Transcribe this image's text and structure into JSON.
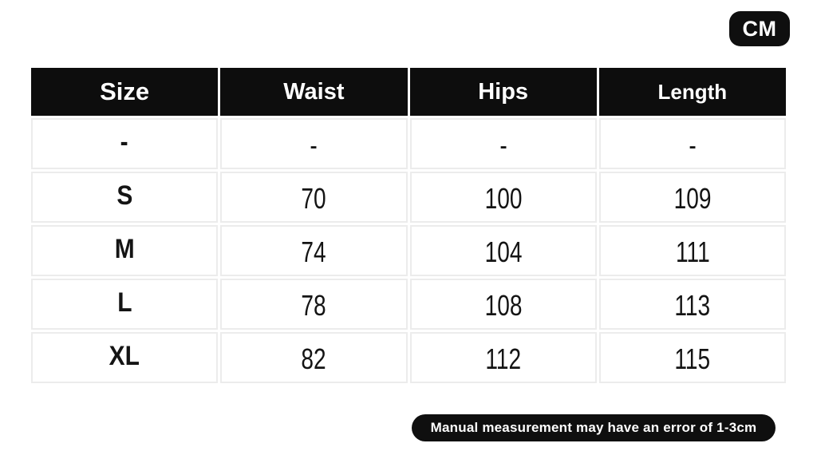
{
  "colors": {
    "badge_black": "#0f0f0f",
    "header_black": "#0d0d0d",
    "cell_border": "#ececec",
    "text": "#141414",
    "background": "#ffffff"
  },
  "unit_badge": {
    "label": "CM"
  },
  "table": {
    "headers": [
      "Size",
      "Waist",
      "Hips",
      "Length"
    ],
    "rows": [
      [
        "-",
        "-",
        "-",
        "-"
      ],
      [
        "S",
        "70",
        "100",
        "109"
      ],
      [
        "M",
        "74",
        "104",
        "111"
      ],
      [
        "L",
        "78",
        "108",
        "113"
      ],
      [
        "XL",
        "82",
        "112",
        "115"
      ]
    ]
  },
  "footer": {
    "note": "Manual measurement may have an error of 1-3cm"
  },
  "chart_data": {
    "type": "table",
    "unit": "CM",
    "columns": [
      "Size",
      "Waist",
      "Hips",
      "Length"
    ],
    "rows": [
      {
        "size": "-",
        "waist": "-",
        "hips": "-",
        "length": "-"
      },
      {
        "size": "S",
        "waist": 70,
        "hips": 100,
        "length": 109
      },
      {
        "size": "M",
        "waist": 74,
        "hips": 104,
        "length": 111
      },
      {
        "size": "L",
        "waist": 78,
        "hips": 108,
        "length": 113
      },
      {
        "size": "XL",
        "waist": 82,
        "hips": 112,
        "length": 115
      }
    ],
    "annotations": [
      "Manual measurement may have an error of 1-3cm"
    ]
  }
}
